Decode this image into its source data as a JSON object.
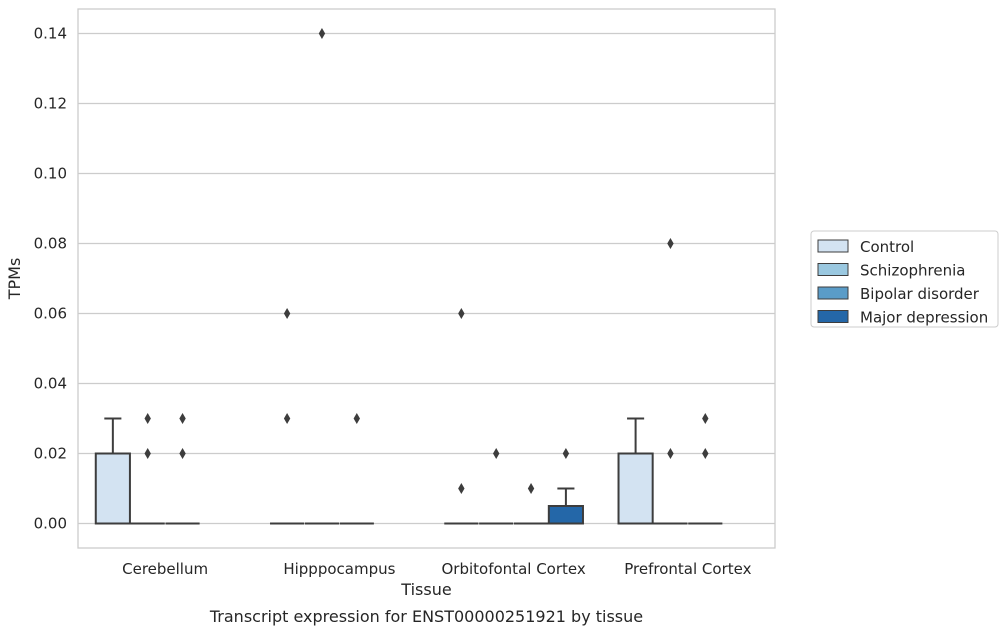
{
  "chart_data": {
    "type": "box",
    "xlabel": "Tissue",
    "ylabel": "TPMs",
    "caption": "Transcript expression for ENST00000251921 by tissue",
    "ylim": [
      -0.007,
      0.147
    ],
    "yticks": [
      "0.00",
      "0.02",
      "0.04",
      "0.06",
      "0.08",
      "0.10",
      "0.12",
      "0.14"
    ],
    "grid": true,
    "legend_position": "right",
    "categories": [
      "Cerebellum",
      "Hipppocampus",
      "Orbitofontal Cortex",
      "Prefrontal Cortex"
    ],
    "series": [
      {
        "name": "Control",
        "color": "#d3e3f2",
        "boxes": [
          {
            "q1": 0.0,
            "median": 0.0,
            "q3": 0.02,
            "whislo": 0.0,
            "whishi": 0.03,
            "fliers": []
          },
          {
            "q1": 0.0,
            "median": 0.0,
            "q3": 0.0,
            "whislo": 0.0,
            "whishi": 0.0,
            "fliers": [
              0.03,
              0.06
            ]
          },
          {
            "q1": 0.0,
            "median": 0.0,
            "q3": 0.0,
            "whislo": 0.0,
            "whishi": 0.0,
            "fliers": [
              0.01,
              0.06
            ]
          },
          {
            "q1": 0.0,
            "median": 0.0,
            "q3": 0.02,
            "whislo": 0.0,
            "whishi": 0.03,
            "fliers": []
          }
        ]
      },
      {
        "name": "Schizophrenia",
        "color": "#9ac8e0",
        "boxes": [
          {
            "q1": 0.0,
            "median": 0.0,
            "q3": 0.0,
            "whislo": 0.0,
            "whishi": 0.0,
            "fliers": [
              0.02,
              0.03
            ]
          },
          {
            "q1": 0.0,
            "median": 0.0,
            "q3": 0.0,
            "whislo": 0.0,
            "whishi": 0.0,
            "fliers": [
              0.14
            ]
          },
          {
            "q1": 0.0,
            "median": 0.0,
            "q3": 0.0,
            "whislo": 0.0,
            "whishi": 0.0,
            "fliers": [
              0.02
            ]
          },
          {
            "q1": 0.0,
            "median": 0.0,
            "q3": 0.0,
            "whislo": 0.0,
            "whishi": 0.0,
            "fliers": [
              0.02,
              0.08
            ]
          }
        ]
      },
      {
        "name": "Bipolar disorder",
        "color": "#5a9cc8",
        "boxes": [
          {
            "q1": 0.0,
            "median": 0.0,
            "q3": 0.0,
            "whislo": 0.0,
            "whishi": 0.0,
            "fliers": [
              0.02,
              0.03
            ]
          },
          {
            "q1": 0.0,
            "median": 0.0,
            "q3": 0.0,
            "whislo": 0.0,
            "whishi": 0.0,
            "fliers": [
              0.03
            ]
          },
          {
            "q1": 0.0,
            "median": 0.0,
            "q3": 0.0,
            "whislo": 0.0,
            "whishi": 0.0,
            "fliers": [
              0.01
            ]
          },
          {
            "q1": 0.0,
            "median": 0.0,
            "q3": 0.0,
            "whislo": 0.0,
            "whishi": 0.0,
            "fliers": [
              0.02,
              0.03
            ]
          }
        ]
      },
      {
        "name": "Major depression",
        "color": "#2467a8",
        "boxes": [
          null,
          null,
          {
            "q1": 0.0,
            "median": 0.0,
            "q3": 0.005,
            "whislo": 0.0,
            "whishi": 0.01,
            "fliers": [
              0.02
            ]
          },
          null
        ]
      }
    ]
  }
}
